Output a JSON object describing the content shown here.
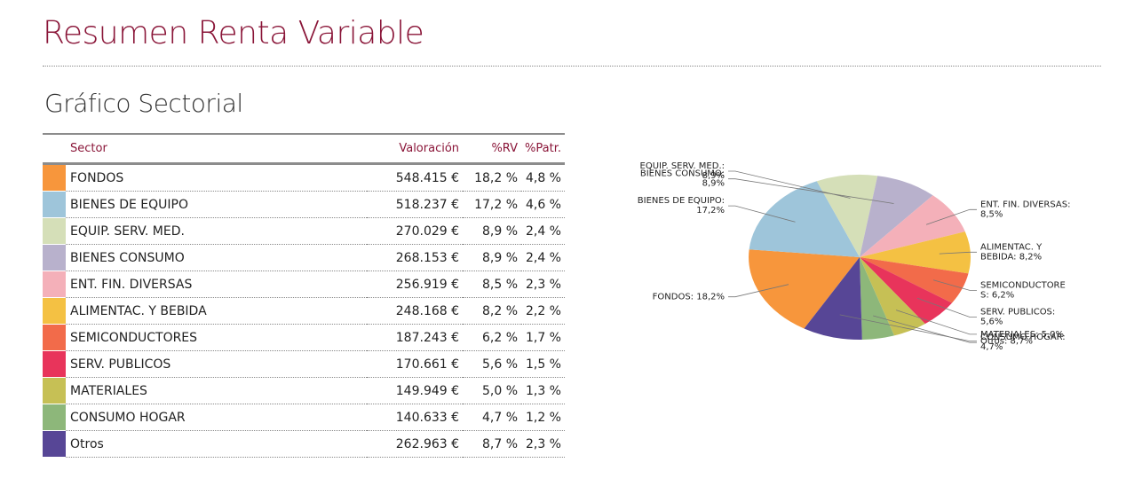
{
  "page": {
    "title": "Resumen Renta Variable",
    "subtitle": "Gráfico Sectorial"
  },
  "table": {
    "headers": {
      "sector": "Sector",
      "valoracion": "Valoración",
      "rv": "%RV",
      "patr": "%Patr."
    },
    "rows": [
      {
        "sector": "FONDOS",
        "valoracion": "548.415 €",
        "rv": "18,2 %",
        "patr": "4,8 %",
        "color": "#f7963c"
      },
      {
        "sector": "BIENES DE EQUIPO",
        "valoracion": "518.237 €",
        "rv": "17,2 %",
        "patr": "4,6 %",
        "color": "#9ec5da"
      },
      {
        "sector": "EQUIP. SERV. MED.",
        "valoracion": "270.029 €",
        "rv": "8,9 %",
        "patr": "2,4 %",
        "color": "#d5dfb8"
      },
      {
        "sector": "BIENES CONSUMO",
        "valoracion": "268.153 €",
        "rv": "8,9 %",
        "patr": "2,4 %",
        "color": "#b8b1cc"
      },
      {
        "sector": "ENT. FIN. DIVERSAS",
        "valoracion": "256.919 €",
        "rv": "8,5 %",
        "patr": "2,3 %",
        "color": "#f4b0b9"
      },
      {
        "sector": "ALIMENTAC. Y BEBIDA",
        "valoracion": "248.168 €",
        "rv": "8,2 %",
        "patr": "2,2 %",
        "color": "#f4c143"
      },
      {
        "sector": "SEMICONDUCTORES",
        "valoracion": "187.243 €",
        "rv": "6,2 %",
        "patr": "1,7 %",
        "color": "#f26b4a"
      },
      {
        "sector": "SERV. PUBLICOS",
        "valoracion": "170.661 €",
        "rv": "5,6 %",
        "patr": "1,5 %",
        "color": "#e8345b"
      },
      {
        "sector": "MATERIALES",
        "valoracion": "149.949 €",
        "rv": "5,0 %",
        "patr": "1,3 %",
        "color": "#c6c055"
      },
      {
        "sector": "CONSUMO HOGAR",
        "valoracion": "140.633 €",
        "rv": "4,7 %",
        "patr": "1,2 %",
        "color": "#8db77a"
      },
      {
        "sector": "Otros",
        "valoracion": "262.963 €",
        "rv": "8,7 %",
        "patr": "2,3 %",
        "color": "#574696"
      }
    ]
  },
  "chart_data": {
    "type": "pie",
    "slices": [
      {
        "label": "FONDOS",
        "value": 18.2,
        "color": "#f7963c",
        "annotation": [
          "FONDOS: 18,2%"
        ],
        "side": "left"
      },
      {
        "label": "BIENES DE EQUIPO",
        "value": 17.2,
        "color": "#9ec5da",
        "annotation": [
          "BIENES DE EQUIPO:",
          "17,2%"
        ],
        "side": "left"
      },
      {
        "label": "EQUIP. SERV. MED.",
        "value": 8.9,
        "color": "#d5dfb8",
        "annotation": [
          "EQUIP. SERV. MED.:",
          "8,9%"
        ],
        "side": "left"
      },
      {
        "label": "BIENES CONSUMO",
        "value": 8.9,
        "color": "#b8b1cc",
        "annotation": [
          "BIENES CONSUMO:",
          "8,9%"
        ],
        "side": "left"
      },
      {
        "label": "ENT. FIN. DIVERSAS",
        "value": 8.5,
        "color": "#f4b0b9",
        "annotation": [
          "ENT. FIN. DIVERSAS:",
          "8,5%"
        ],
        "side": "right"
      },
      {
        "label": "ALIMENTAC. Y BEBIDA",
        "value": 8.2,
        "color": "#f4c143",
        "annotation": [
          "ALIMENTAC. Y",
          "BEBIDA: 8,2%"
        ],
        "side": "right"
      },
      {
        "label": "SEMICONDUCTORES",
        "value": 6.2,
        "color": "#f26b4a",
        "annotation": [
          "SEMICONDUCTORE",
          "S: 6,2%"
        ],
        "side": "right"
      },
      {
        "label": "SERV. PUBLICOS",
        "value": 5.6,
        "color": "#e8345b",
        "annotation": [
          "SERV. PUBLICOS:",
          "5,6%"
        ],
        "side": "right"
      },
      {
        "label": "MATERIALES",
        "value": 5.0,
        "color": "#c6c055",
        "annotation": [
          "MATERIALES: 5,0%"
        ],
        "side": "right"
      },
      {
        "label": "CONSUMO HOGAR",
        "value": 4.7,
        "color": "#8db77a",
        "annotation": [
          "CONSUMO HOGAR:",
          "4,7%"
        ],
        "side": "right"
      },
      {
        "label": "Otros",
        "value": 8.7,
        "color": "#574696",
        "annotation": [
          "Otros: 8,7%"
        ],
        "side": "right"
      }
    ]
  }
}
